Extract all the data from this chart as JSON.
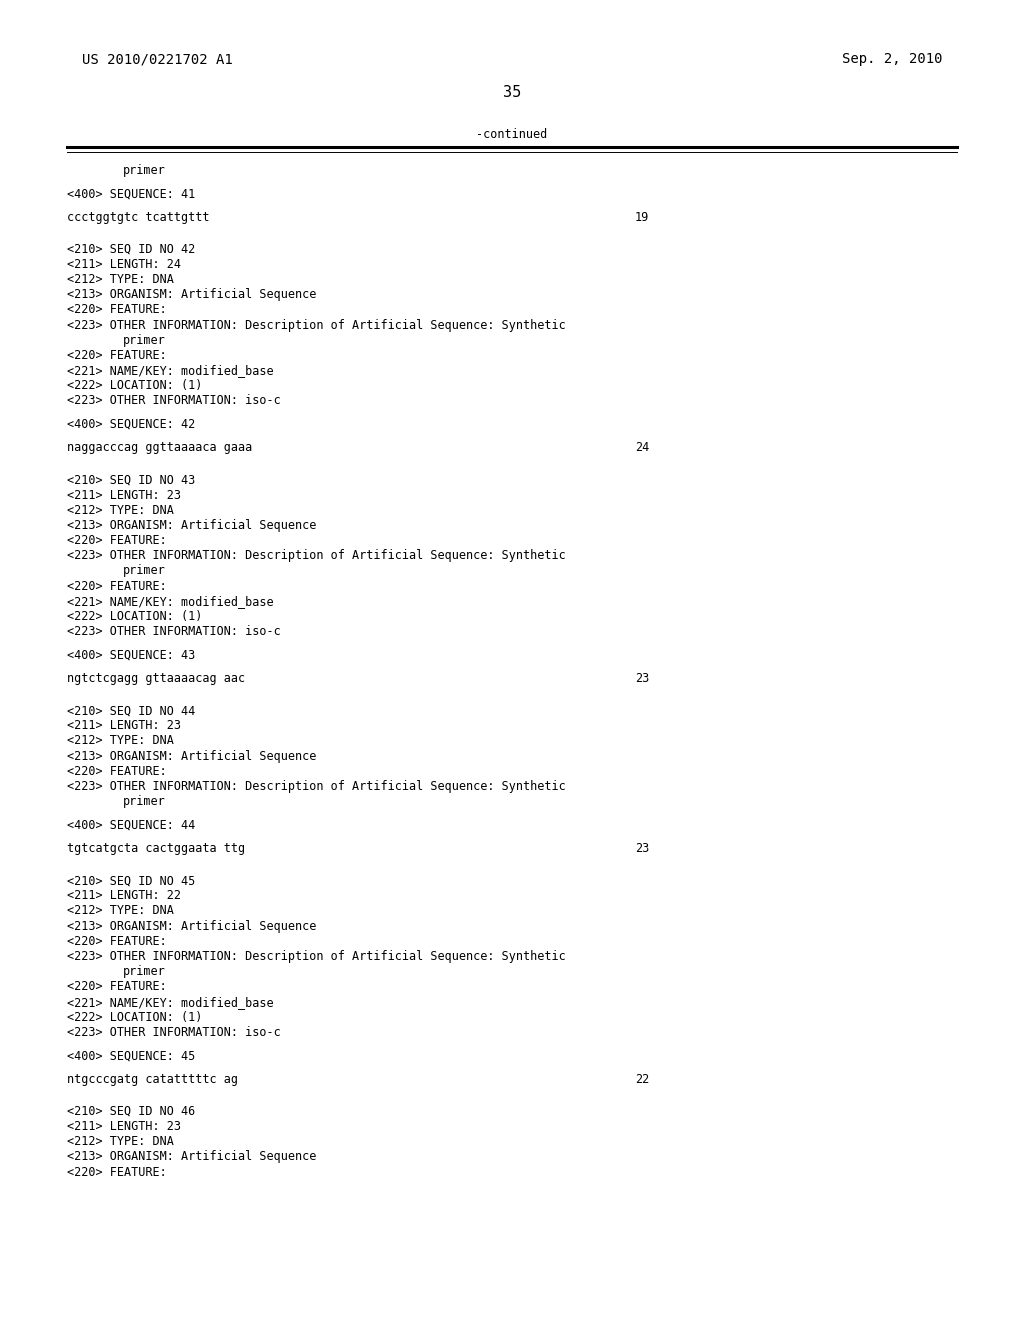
{
  "header_left": "US 2010/0221702 A1",
  "header_right": "Sep. 2, 2010",
  "page_number": "35",
  "continued_label": "-continued",
  "bg_color": "#ffffff",
  "text_color": "#000000",
  "font_size": 8.5,
  "header_font_size": 10,
  "page_font_size": 11,
  "lines": [
    {
      "indent": 0.12,
      "text": "primer"
    },
    {
      "indent": null,
      "text": ""
    },
    {
      "indent": 0.065,
      "text": "<400> SEQUENCE: 41"
    },
    {
      "indent": null,
      "text": ""
    },
    {
      "indent": 0.065,
      "text": "ccctggtgtc tcattgttt",
      "right_num": "19"
    },
    {
      "indent": null,
      "text": ""
    },
    {
      "indent": null,
      "text": ""
    },
    {
      "indent": 0.065,
      "text": "<210> SEQ ID NO 42"
    },
    {
      "indent": 0.065,
      "text": "<211> LENGTH: 24"
    },
    {
      "indent": 0.065,
      "text": "<212> TYPE: DNA"
    },
    {
      "indent": 0.065,
      "text": "<213> ORGANISM: Artificial Sequence"
    },
    {
      "indent": 0.065,
      "text": "<220> FEATURE:"
    },
    {
      "indent": 0.065,
      "text": "<223> OTHER INFORMATION: Description of Artificial Sequence: Synthetic"
    },
    {
      "indent": 0.12,
      "text": "primer"
    },
    {
      "indent": 0.065,
      "text": "<220> FEATURE:"
    },
    {
      "indent": 0.065,
      "text": "<221> NAME/KEY: modified_base"
    },
    {
      "indent": 0.065,
      "text": "<222> LOCATION: (1)"
    },
    {
      "indent": 0.065,
      "text": "<223> OTHER INFORMATION: iso-c"
    },
    {
      "indent": null,
      "text": ""
    },
    {
      "indent": 0.065,
      "text": "<400> SEQUENCE: 42"
    },
    {
      "indent": null,
      "text": ""
    },
    {
      "indent": 0.065,
      "text": "naggacccag ggttaaaaca gaaa",
      "right_num": "24"
    },
    {
      "indent": null,
      "text": ""
    },
    {
      "indent": null,
      "text": ""
    },
    {
      "indent": 0.065,
      "text": "<210> SEQ ID NO 43"
    },
    {
      "indent": 0.065,
      "text": "<211> LENGTH: 23"
    },
    {
      "indent": 0.065,
      "text": "<212> TYPE: DNA"
    },
    {
      "indent": 0.065,
      "text": "<213> ORGANISM: Artificial Sequence"
    },
    {
      "indent": 0.065,
      "text": "<220> FEATURE:"
    },
    {
      "indent": 0.065,
      "text": "<223> OTHER INFORMATION: Description of Artificial Sequence: Synthetic"
    },
    {
      "indent": 0.12,
      "text": "primer"
    },
    {
      "indent": 0.065,
      "text": "<220> FEATURE:"
    },
    {
      "indent": 0.065,
      "text": "<221> NAME/KEY: modified_base"
    },
    {
      "indent": 0.065,
      "text": "<222> LOCATION: (1)"
    },
    {
      "indent": 0.065,
      "text": "<223> OTHER INFORMATION: iso-c"
    },
    {
      "indent": null,
      "text": ""
    },
    {
      "indent": 0.065,
      "text": "<400> SEQUENCE: 43"
    },
    {
      "indent": null,
      "text": ""
    },
    {
      "indent": 0.065,
      "text": "ngtctcgagg gttaaaacag aac",
      "right_num": "23"
    },
    {
      "indent": null,
      "text": ""
    },
    {
      "indent": null,
      "text": ""
    },
    {
      "indent": 0.065,
      "text": "<210> SEQ ID NO 44"
    },
    {
      "indent": 0.065,
      "text": "<211> LENGTH: 23"
    },
    {
      "indent": 0.065,
      "text": "<212> TYPE: DNA"
    },
    {
      "indent": 0.065,
      "text": "<213> ORGANISM: Artificial Sequence"
    },
    {
      "indent": 0.065,
      "text": "<220> FEATURE:"
    },
    {
      "indent": 0.065,
      "text": "<223> OTHER INFORMATION: Description of Artificial Sequence: Synthetic"
    },
    {
      "indent": 0.12,
      "text": "primer"
    },
    {
      "indent": null,
      "text": ""
    },
    {
      "indent": 0.065,
      "text": "<400> SEQUENCE: 44"
    },
    {
      "indent": null,
      "text": ""
    },
    {
      "indent": 0.065,
      "text": "tgtcatgcta cactggaata ttg",
      "right_num": "23"
    },
    {
      "indent": null,
      "text": ""
    },
    {
      "indent": null,
      "text": ""
    },
    {
      "indent": 0.065,
      "text": "<210> SEQ ID NO 45"
    },
    {
      "indent": 0.065,
      "text": "<211> LENGTH: 22"
    },
    {
      "indent": 0.065,
      "text": "<212> TYPE: DNA"
    },
    {
      "indent": 0.065,
      "text": "<213> ORGANISM: Artificial Sequence"
    },
    {
      "indent": 0.065,
      "text": "<220> FEATURE:"
    },
    {
      "indent": 0.065,
      "text": "<223> OTHER INFORMATION: Description of Artificial Sequence: Synthetic"
    },
    {
      "indent": 0.12,
      "text": "primer"
    },
    {
      "indent": 0.065,
      "text": "<220> FEATURE:"
    },
    {
      "indent": 0.065,
      "text": "<221> NAME/KEY: modified_base"
    },
    {
      "indent": 0.065,
      "text": "<222> LOCATION: (1)"
    },
    {
      "indent": 0.065,
      "text": "<223> OTHER INFORMATION: iso-c"
    },
    {
      "indent": null,
      "text": ""
    },
    {
      "indent": 0.065,
      "text": "<400> SEQUENCE: 45"
    },
    {
      "indent": null,
      "text": ""
    },
    {
      "indent": 0.065,
      "text": "ntgcccgatg catatttttc ag",
      "right_num": "22"
    },
    {
      "indent": null,
      "text": ""
    },
    {
      "indent": null,
      "text": ""
    },
    {
      "indent": 0.065,
      "text": "<210> SEQ ID NO 46"
    },
    {
      "indent": 0.065,
      "text": "<211> LENGTH: 23"
    },
    {
      "indent": 0.065,
      "text": "<212> TYPE: DNA"
    },
    {
      "indent": 0.065,
      "text": "<213> ORGANISM: Artificial Sequence"
    },
    {
      "indent": 0.065,
      "text": "<220> FEATURE:"
    }
  ]
}
